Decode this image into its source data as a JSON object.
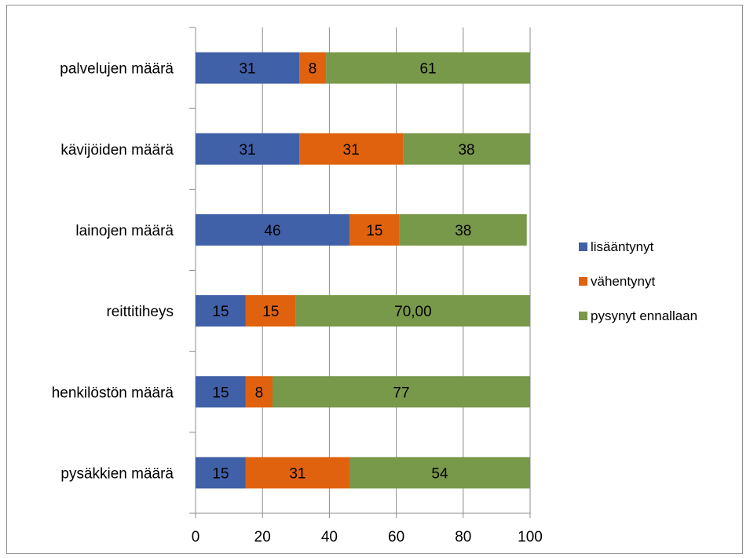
{
  "chart_data": {
    "type": "bar",
    "orientation": "horizontal",
    "stacked": true,
    "categories": [
      "palvelujen määrä",
      "kävijöiden määrä",
      "lainojen määrä",
      "reittitiheys",
      "henkilöstön määrä",
      "pysäkkien määrä"
    ],
    "series": [
      {
        "name": "lisääntynyt",
        "color": "#4060a8",
        "values": [
          31,
          31,
          46,
          15,
          15,
          15
        ],
        "labels": [
          "31",
          "31",
          "46",
          "15",
          "15",
          "15"
        ]
      },
      {
        "name": "vähentynyt",
        "color": "#e0620e",
        "values": [
          8,
          31,
          15,
          15,
          8,
          31
        ],
        "labels": [
          "8",
          "31",
          "15",
          "15",
          "8",
          "31"
        ]
      },
      {
        "name": "pysynyt ennallaan",
        "color": "#78984a",
        "values": [
          61,
          38,
          38,
          70,
          77,
          54
        ],
        "labels": [
          "61",
          "38",
          "38",
          "70,00",
          "77",
          "54"
        ]
      }
    ],
    "xlim": [
      0,
      100
    ],
    "xticks": [
      "0",
      "20",
      "40",
      "60",
      "80",
      "100"
    ],
    "grid": true,
    "legend_position": "right"
  }
}
